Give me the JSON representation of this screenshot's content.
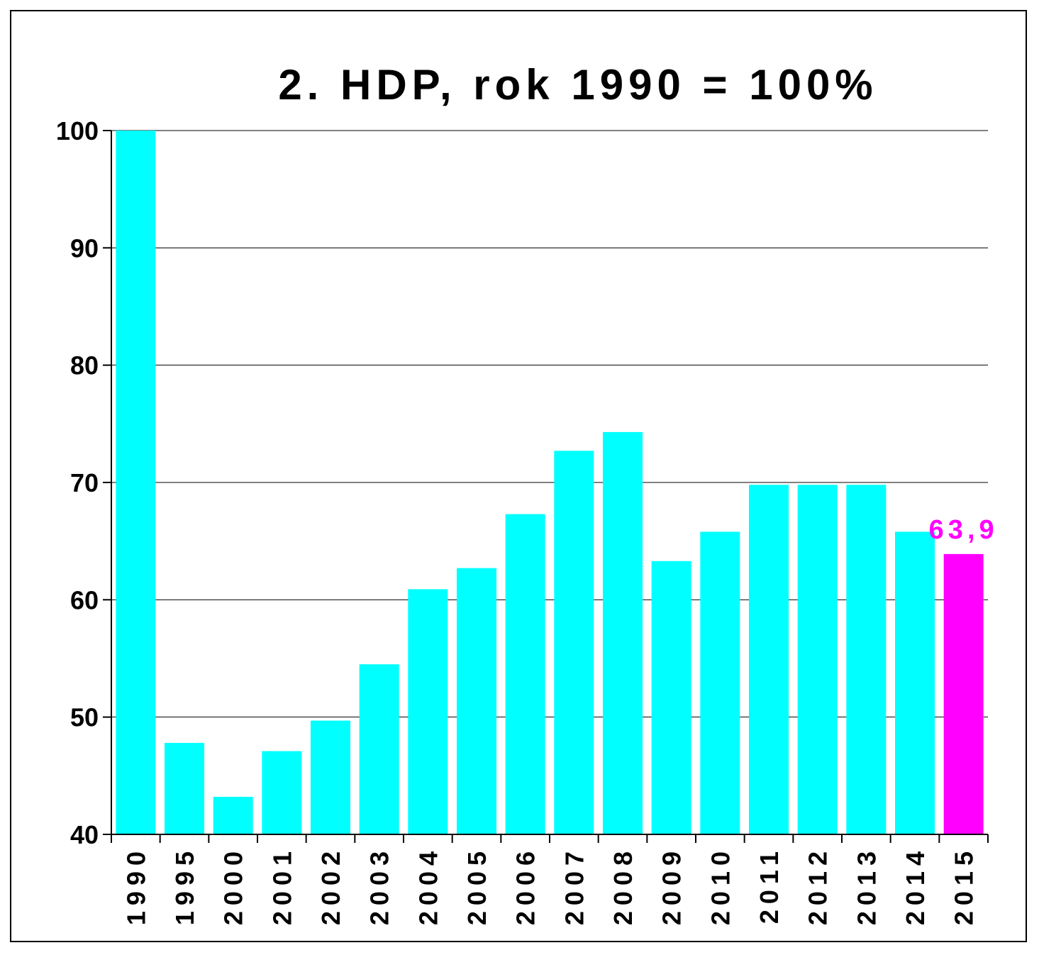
{
  "chart_data": {
    "type": "bar",
    "title": "2. HDP, rok 1990 = 100%",
    "xlabel": "",
    "ylabel": "",
    "categories": [
      "1990",
      "1995",
      "2000",
      "2001",
      "2002",
      "2003",
      "2004",
      "2005",
      "2006",
      "2007",
      "2008",
      "2009",
      "2010",
      "2011",
      "2012",
      "2013",
      "2014",
      "2015"
    ],
    "values": [
      100,
      47.8,
      43.2,
      47.1,
      49.7,
      54.5,
      60.9,
      62.7,
      67.3,
      72.7,
      74.3,
      63.3,
      65.8,
      69.8,
      69.8,
      69.8,
      65.8,
      63.9
    ],
    "ylim": [
      40,
      100
    ],
    "yticks": [
      "40",
      "50",
      "60",
      "70",
      "80",
      "90",
      "100"
    ],
    "grid": true,
    "colors": {
      "default": "#00ffff",
      "highlight": "#ff00ff"
    },
    "highlight_index": 17,
    "annotations": [
      {
        "category": "2015",
        "text": "63,9",
        "color": "#ff00ff"
      }
    ]
  }
}
